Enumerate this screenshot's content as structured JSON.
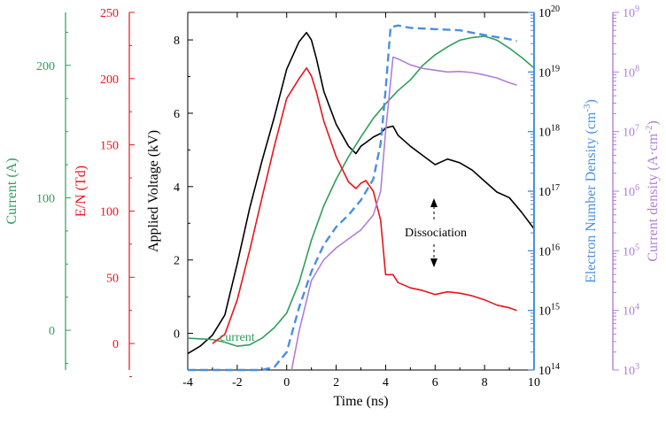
{
  "colors": {
    "voltage": "#000000",
    "current": "#2e9e5b",
    "en": "#e8141b",
    "density": "#4a8fe0",
    "current_density": "#b07fd8"
  },
  "chart_data": {
    "type": "line",
    "xlabel": "Time (ns)",
    "xlim": [
      -4,
      10
    ],
    "x_ticks": [
      "-4",
      "-2",
      "0",
      "2",
      "4",
      "6",
      "8",
      "10"
    ],
    "axes": {
      "voltage": {
        "label": "Applied Voltage (kV)",
        "range": [
          -1,
          8.75
        ],
        "ticks": [
          "0",
          "2",
          "4",
          "6",
          "8"
        ]
      },
      "current": {
        "label": "Current (A)",
        "range": [
          -30,
          240
        ],
        "ticks": [
          "0",
          "100",
          "200"
        ]
      },
      "en": {
        "label": "E/N (Td)",
        "range": [
          -20,
          250
        ],
        "ticks": [
          "0",
          "50",
          "100",
          "150",
          "200",
          "250"
        ]
      },
      "density": {
        "label": "Electron Number Density (cm",
        "label_sup": "-3",
        "label_end": ")",
        "scale": "log",
        "range": [
          14,
          20
        ],
        "tick_base": "10",
        "tick_exps": [
          "14",
          "15",
          "16",
          "17",
          "18",
          "19",
          "20"
        ]
      },
      "current_density": {
        "label": "Current density (A·cm",
        "label_sup": "-2",
        "label_end": ")",
        "scale": "log",
        "range": [
          3,
          9
        ],
        "tick_base": "10",
        "tick_exps": [
          "3",
          "4",
          "5",
          "6",
          "7",
          "8",
          "9"
        ]
      }
    },
    "annotations": {
      "current_label": "current",
      "dissociation": "Dissociation"
    },
    "series": [
      {
        "key": "voltage",
        "axis": "voltage",
        "style": "solid",
        "x": [
          -4,
          -3.5,
          -3,
          -2.5,
          -2,
          -1.5,
          -1,
          -0.5,
          0,
          0.5,
          0.8,
          1.0,
          1.2,
          1.5,
          2.0,
          2.5,
          2.8,
          3.0,
          3.2,
          3.5,
          3.8,
          4.0,
          4.3,
          4.5,
          5.0,
          5.5,
          6.0,
          6.5,
          7.0,
          7.5,
          8.0,
          8.5,
          9.0,
          9.5,
          10
        ],
        "y": [
          -0.55,
          -0.35,
          -0.05,
          0.5,
          1.9,
          3.4,
          4.7,
          5.9,
          7.2,
          7.95,
          8.2,
          8.0,
          7.5,
          6.6,
          5.7,
          5.1,
          4.9,
          5.1,
          5.2,
          5.35,
          5.45,
          5.6,
          5.65,
          5.4,
          5.1,
          4.85,
          4.6,
          4.75,
          4.65,
          4.45,
          4.15,
          3.85,
          3.7,
          3.3,
          2.85
        ]
      },
      {
        "key": "current",
        "axis": "current",
        "style": "solid",
        "x": [
          -4,
          -3,
          -2.5,
          -2,
          -1.5,
          -1,
          -0.5,
          0,
          0.5,
          1.0,
          1.5,
          2.0,
          2.5,
          3.0,
          3.5,
          4.0,
          4.5,
          5.0,
          5.5,
          6.0,
          6.5,
          7.0,
          7.5,
          8.0,
          8.5,
          9.0,
          9.5,
          10
        ],
        "y": [
          -6,
          -7,
          -9,
          -12,
          -11,
          -6,
          2,
          13,
          36,
          68,
          94,
          114,
          131,
          146,
          160,
          171,
          181,
          189,
          200,
          208,
          214,
          219,
          221,
          222,
          219,
          213,
          206,
          198
        ]
      },
      {
        "key": "en",
        "axis": "en",
        "style": "solid",
        "x": [
          -3,
          -2.5,
          -2,
          -1.5,
          -1,
          -0.5,
          0,
          0.5,
          0.8,
          1.0,
          1.2,
          1.5,
          2.0,
          2.5,
          2.8,
          3.0,
          3.2,
          3.5,
          3.8,
          4.0,
          4.3,
          4.5,
          5.0,
          5.5,
          6.0,
          6.5,
          7.0,
          7.5,
          8.0,
          8.5,
          9.0,
          9.3
        ],
        "y": [
          0,
          7,
          33,
          70,
          110,
          149,
          185,
          200,
          208,
          202,
          190,
          168,
          141,
          122,
          117,
          121,
          123,
          115,
          93,
          52,
          52,
          46,
          42,
          40,
          37,
          39,
          38,
          36,
          33,
          29,
          27,
          25
        ]
      },
      {
        "key": "density",
        "axis": "density",
        "style": "dashed",
        "x": [
          -4,
          -3,
          -2,
          -1,
          -0.5,
          0,
          0.5,
          1.0,
          1.5,
          2.0,
          2.5,
          3.0,
          3.5,
          3.8,
          4.0,
          4.2,
          4.5,
          5,
          6,
          7,
          8,
          9,
          9.3
        ],
        "y": [
          14,
          14,
          14,
          14,
          14.05,
          14.3,
          15.05,
          15.65,
          16.1,
          16.4,
          16.6,
          16.85,
          17.2,
          17.8,
          18.7,
          19.75,
          19.78,
          19.74,
          19.72,
          19.7,
          19.62,
          19.55,
          19.52
        ]
      },
      {
        "key": "current_density",
        "axis": "current_density",
        "style": "solid",
        "x": [
          0.2,
          0.5,
          1.0,
          1.5,
          2.0,
          2.5,
          3.0,
          3.5,
          3.8,
          4.0,
          4.3,
          4.5,
          5.0,
          5.5,
          6.0,
          6.5,
          7.0,
          7.5,
          8.0,
          8.5,
          9.0,
          9.3
        ],
        "y": [
          3.0,
          3.65,
          4.5,
          4.85,
          5.05,
          5.2,
          5.35,
          5.6,
          6.0,
          7.0,
          8.25,
          8.22,
          8.12,
          8.06,
          8.03,
          8.0,
          8.01,
          7.99,
          7.95,
          7.9,
          7.82,
          7.78
        ]
      }
    ]
  }
}
